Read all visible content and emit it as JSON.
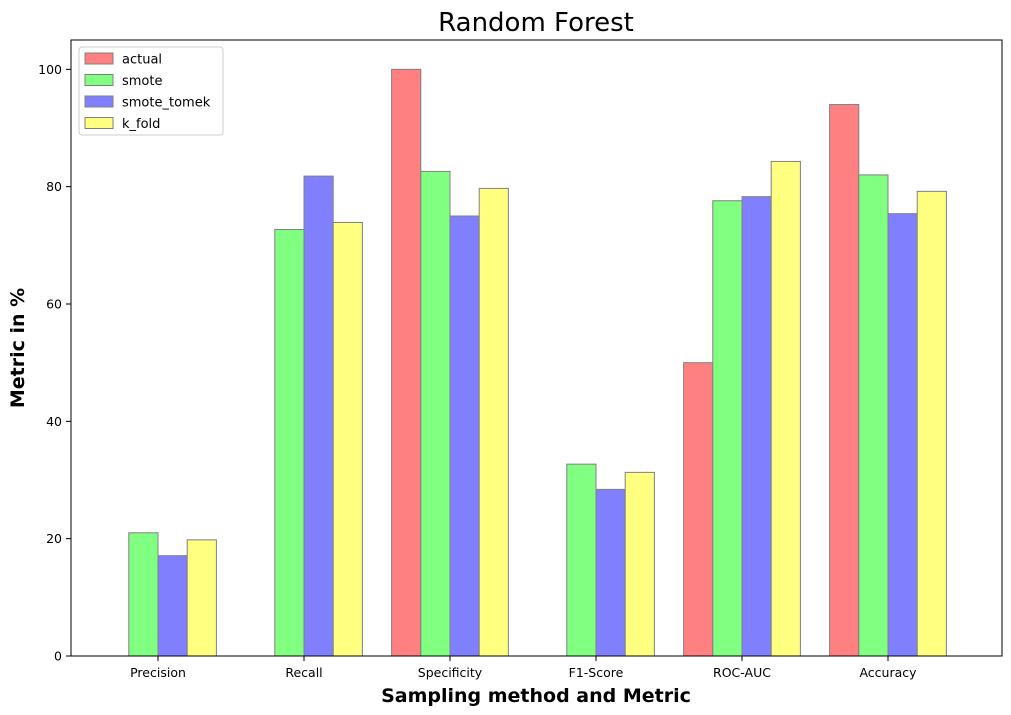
{
  "chart_data": {
    "type": "bar",
    "title": "Random Forest",
    "xlabel": "Sampling method and Metric",
    "ylabel": "Metric in %",
    "categories": [
      "Precision",
      "Recall",
      "Specificity",
      "F1-Score",
      "ROC-AUC",
      "Accuracy"
    ],
    "series": [
      {
        "name": "actual",
        "color": "#ff8080",
        "values": [
          0,
          0,
          100,
          0,
          50,
          94
        ]
      },
      {
        "name": "smote",
        "color": "#80ff80",
        "values": [
          21,
          72.7,
          82.6,
          32.7,
          77.6,
          82
        ]
      },
      {
        "name": "smote_tomek",
        "color": "#8080ff",
        "values": [
          17.1,
          81.8,
          75,
          28.4,
          78.3,
          75.4
        ]
      },
      {
        "name": "k_fold",
        "color": "#ffff80",
        "values": [
          19.8,
          73.9,
          79.7,
          31.3,
          84.3,
          79.2
        ]
      }
    ],
    "ylim": [
      0,
      105
    ],
    "yticks": [
      0,
      20,
      40,
      60,
      80,
      100
    ],
    "grid": false,
    "legend_position": "top-left",
    "bar_edge_color": "#808080"
  }
}
